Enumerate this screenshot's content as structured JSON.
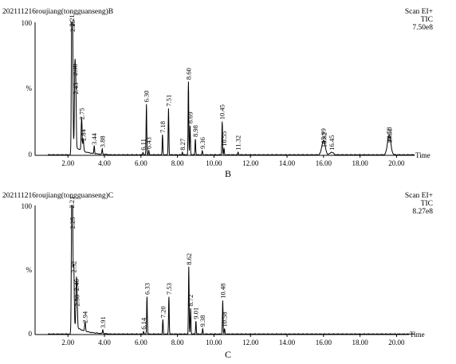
{
  "chart_data": [
    {
      "type": "line",
      "sample_name": "202111216roujiang(tongguanseng)B",
      "scan_label": "Scan EI+",
      "tic_label": "TIC",
      "max_intensity": "7.50e8",
      "panel_label": "B",
      "xlabel": "Time",
      "ylabel": "%",
      "xlim": [
        0.2,
        21.0
      ],
      "ylim": [
        0,
        100
      ],
      "x_ticks": [
        "2.00",
        "4.00",
        "6.00",
        "8.00",
        "10.00",
        "12.00",
        "14.00",
        "16.00",
        "18.00",
        "20.00"
      ],
      "y_ticks": [
        "100",
        "%",
        "0"
      ],
      "peaks": [
        {
          "rt": 2.21,
          "label": "2.21",
          "y": 95
        },
        {
          "rt": 2.25,
          "label": "2.25",
          "y": 91
        },
        {
          "rt": 2.38,
          "label": "2.38",
          "y": 58
        },
        {
          "rt": 2.43,
          "label": "2.43",
          "y": 44
        },
        {
          "rt": 2.75,
          "label": "2.75",
          "y": 25
        },
        {
          "rt": 2.84,
          "label": "2.84",
          "y": 9
        },
        {
          "rt": 3.44,
          "label": "3.44",
          "y": 6
        },
        {
          "rt": 3.88,
          "label": "3.88",
          "y": 4
        },
        {
          "rt": 6.11,
          "label": "6.11",
          "y": 2
        },
        {
          "rt": 6.3,
          "label": "6.30",
          "y": 38
        },
        {
          "rt": 6.43,
          "label": "6.43",
          "y": 3
        },
        {
          "rt": 7.18,
          "label": "7.18",
          "y": 15
        },
        {
          "rt": 7.51,
          "label": "7.51",
          "y": 35
        },
        {
          "rt": 8.27,
          "label": "8.27",
          "y": 2
        },
        {
          "rt": 8.6,
          "label": "8.60",
          "y": 55
        },
        {
          "rt": 8.69,
          "label": "8.69",
          "y": 22
        },
        {
          "rt": 8.98,
          "label": "8.98",
          "y": 12
        },
        {
          "rt": 9.36,
          "label": "9.36",
          "y": 3
        },
        {
          "rt": 10.45,
          "label": "10.45",
          "y": 25
        },
        {
          "rt": 10.55,
          "label": "10.55",
          "y": 5
        },
        {
          "rt": 11.32,
          "label": "11.32",
          "y": 2
        },
        {
          "rt": 15.99,
          "label": "15.99",
          "y": 7
        },
        {
          "rt": 16.02,
          "label": "16.02",
          "y": 4
        },
        {
          "rt": 16.45,
          "label": "16.45",
          "y": 2
        },
        {
          "rt": 19.58,
          "label": "19.58",
          "y": 8
        },
        {
          "rt": 19.61,
          "label": "19.61",
          "y": 7
        }
      ]
    },
    {
      "type": "line",
      "sample_name": "202111216roujiang(tongguanseng)C",
      "scan_label": "Scan EI+",
      "tic_label": "TIC",
      "max_intensity": "8.27e8",
      "panel_label": "C",
      "xlabel": "Time",
      "ylabel": "%",
      "xlim": [
        0.2,
        21.0
      ],
      "ylim": [
        0,
        100
      ],
      "x_ticks": [
        "2.00",
        "4.00",
        "6.00",
        "8.00",
        "10.00",
        "12.00",
        "14.00",
        "16.00",
        "18.00",
        "20.00"
      ],
      "y_ticks": [
        "100",
        "%",
        "0"
      ],
      "peaks": [
        {
          "rt": 2.21,
          "label": "2.21",
          "y": 96
        },
        {
          "rt": 2.25,
          "label": "2.25",
          "y": 80
        },
        {
          "rt": 2.32,
          "label": "2.32",
          "y": 46
        },
        {
          "rt": 2.46,
          "label": "2.46",
          "y": 32
        },
        {
          "rt": 2.5,
          "label": "2.50",
          "y": 20
        },
        {
          "rt": 2.94,
          "label": "2.94",
          "y": 7
        },
        {
          "rt": 3.91,
          "label": "3.91",
          "y": 3
        },
        {
          "rt": 6.14,
          "label": "6.14",
          "y": 2
        },
        {
          "rt": 6.33,
          "label": "6.33",
          "y": 29
        },
        {
          "rt": 7.2,
          "label": "7.20",
          "y": 11
        },
        {
          "rt": 7.53,
          "label": "7.53",
          "y": 29
        },
        {
          "rt": 8.62,
          "label": "8.62",
          "y": 52
        },
        {
          "rt": 8.72,
          "label": "8.72",
          "y": 20
        },
        {
          "rt": 9.01,
          "label": "9.01",
          "y": 10
        },
        {
          "rt": 9.38,
          "label": "9.38",
          "y": 4
        },
        {
          "rt": 10.48,
          "label": "10.48",
          "y": 26
        },
        {
          "rt": 10.58,
          "label": "10.58",
          "y": 4
        }
      ]
    }
  ]
}
